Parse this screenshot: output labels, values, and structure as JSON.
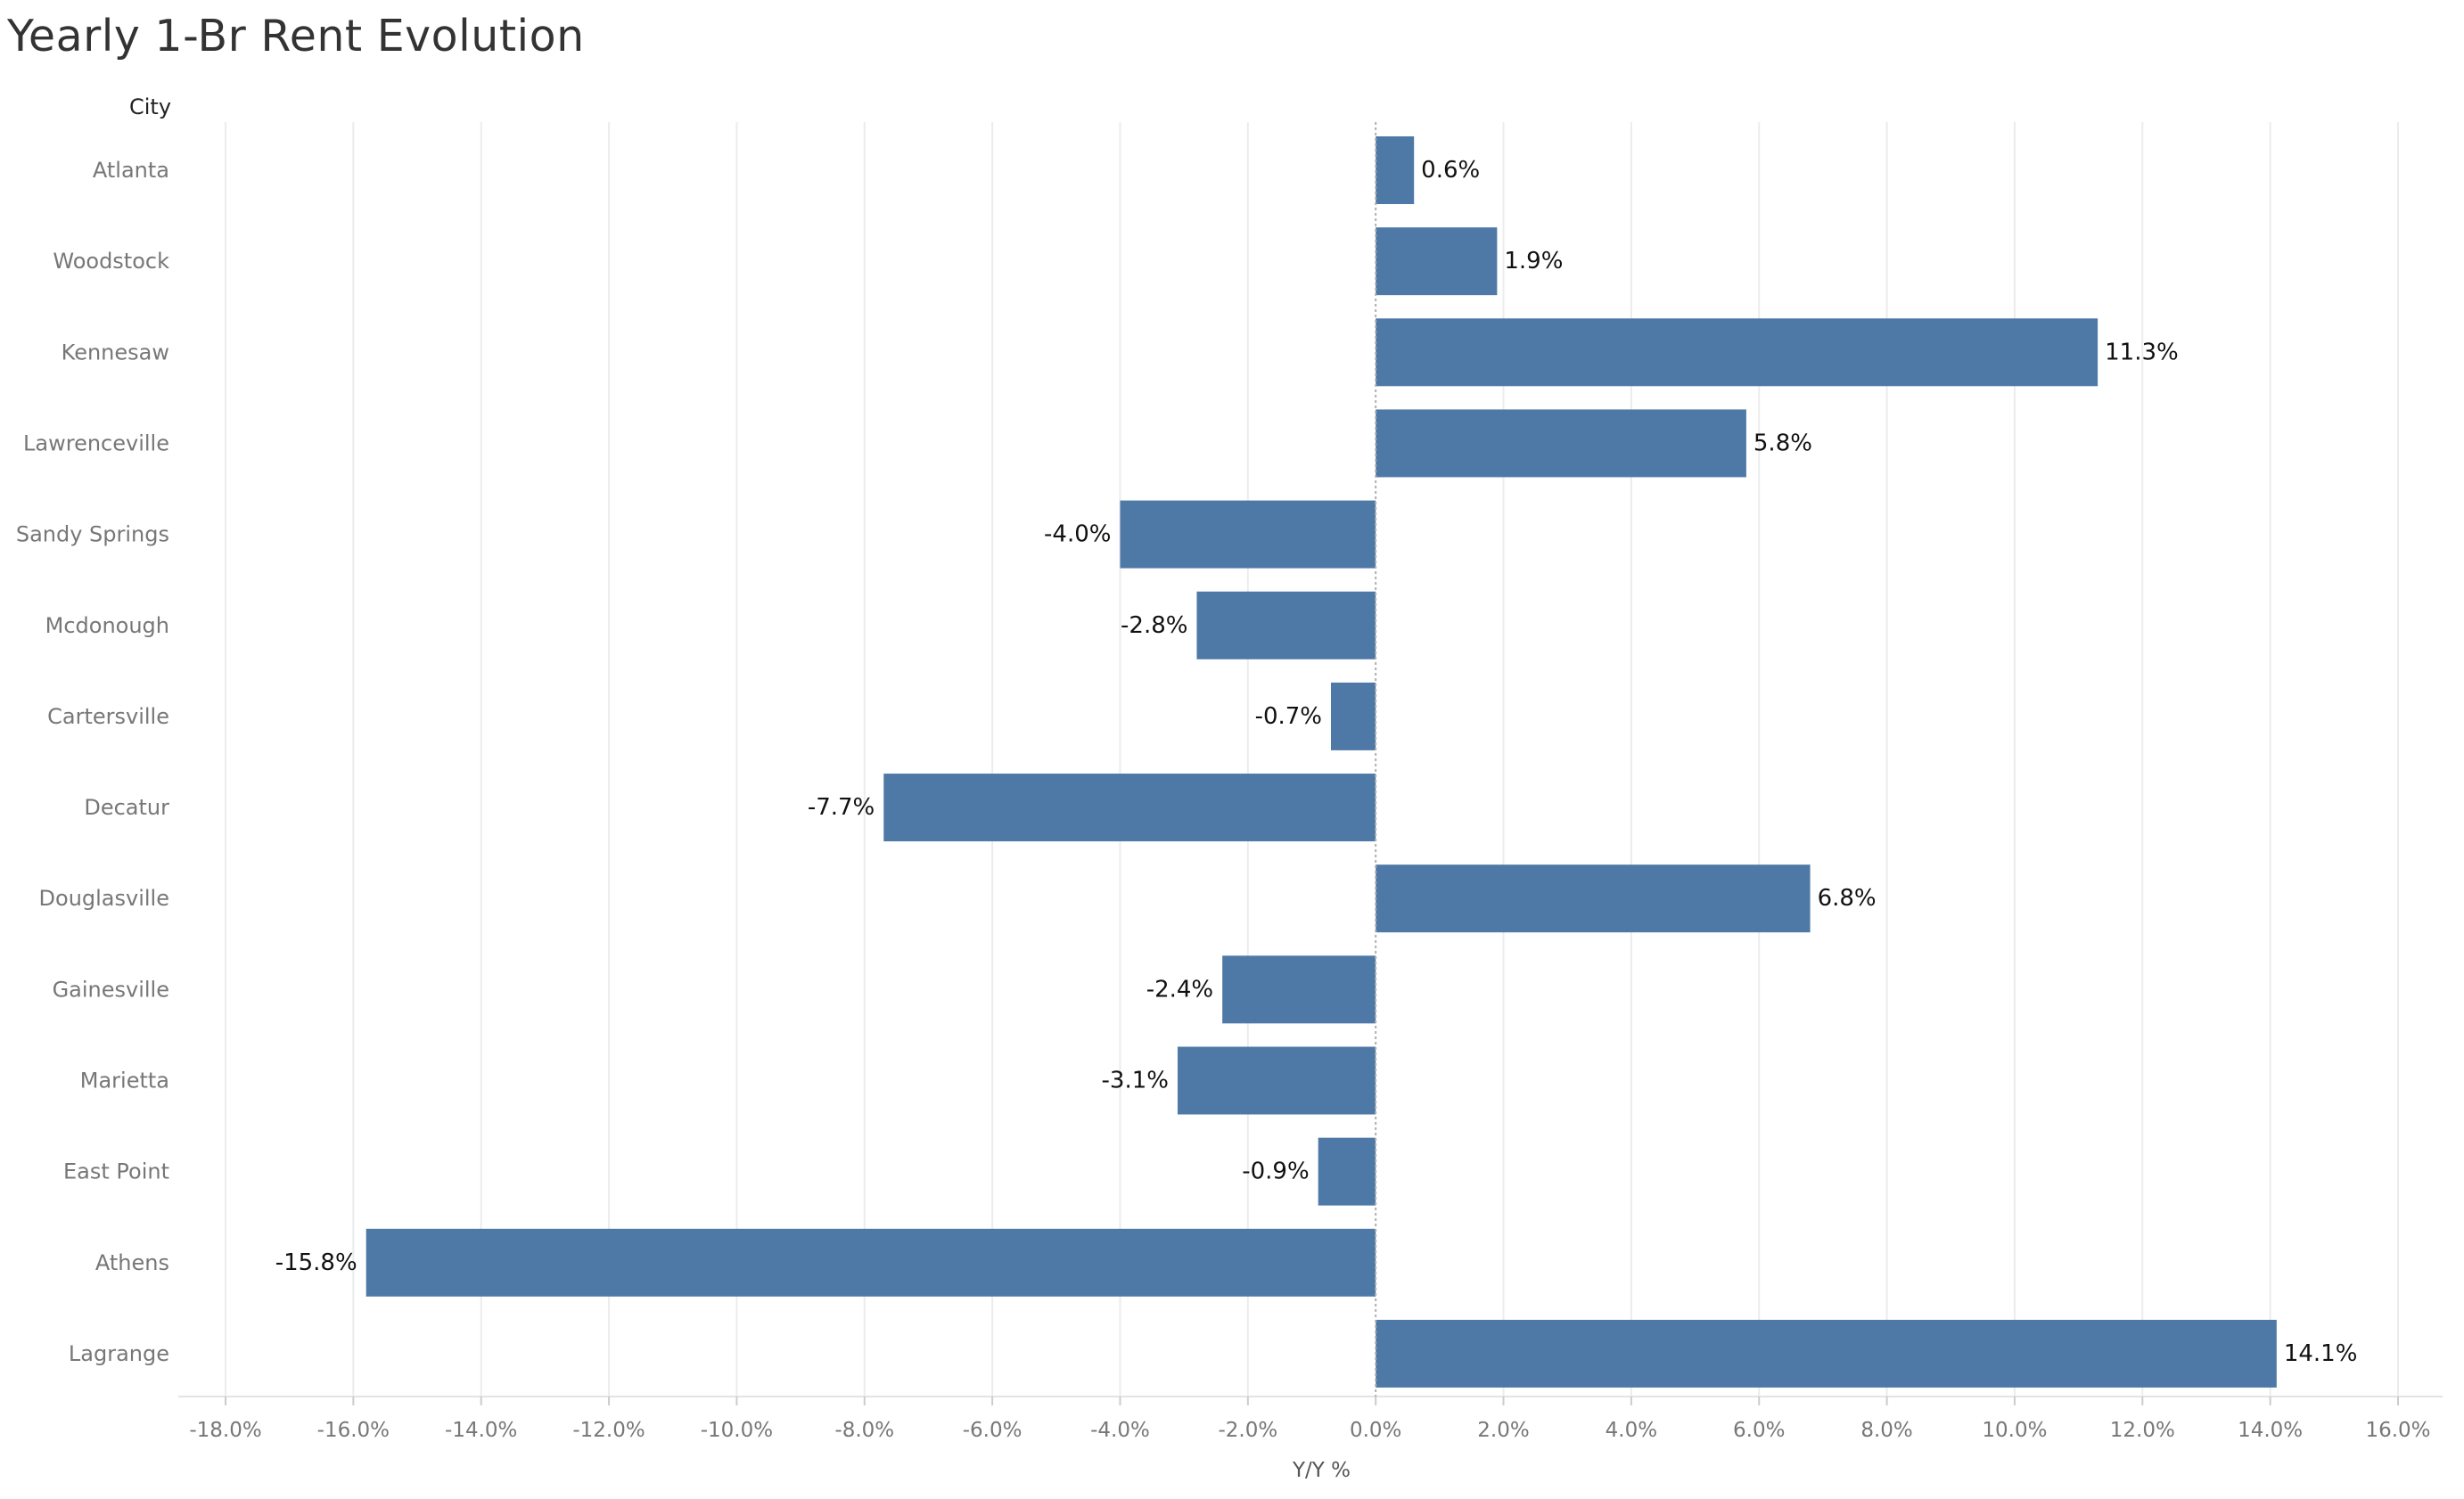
{
  "chart_data": {
    "type": "bar",
    "orientation": "horizontal",
    "title": "Yearly 1-Br Rent Evolution",
    "row_header": "City",
    "xlabel": "Y/Y %",
    "categories": [
      "Atlanta",
      "Woodstock",
      "Kennesaw",
      "Lawrenceville",
      "Sandy Springs",
      "Mcdonough",
      "Cartersville",
      "Decatur",
      "Douglasville",
      "Gainesville",
      "Marietta",
      "East Point",
      "Athens",
      "Lagrange"
    ],
    "values": [
      0.6,
      1.9,
      11.3,
      5.8,
      -4.0,
      -2.8,
      -0.7,
      -7.7,
      6.8,
      -2.4,
      -3.1,
      -0.9,
      -15.8,
      14.1
    ],
    "data_labels": [
      "0.6%",
      "1.9%",
      "11.3%",
      "5.8%",
      "-4.0%",
      "-2.8%",
      "-0.7%",
      "-7.7%",
      "6.8%",
      "-2.4%",
      "-3.1%",
      "-0.9%",
      "-15.8%",
      "14.1%"
    ],
    "xlim": [
      -18,
      16
    ],
    "x_ticks": [
      -18,
      -16,
      -14,
      -12,
      -10,
      -8,
      -6,
      -4,
      -2,
      0,
      2,
      4,
      6,
      8,
      10,
      12,
      14,
      16
    ],
    "x_tick_labels": [
      "-18.0%",
      "-16.0%",
      "-14.0%",
      "-12.0%",
      "-10.0%",
      "-8.0%",
      "-6.0%",
      "-4.0%",
      "-2.0%",
      "0.0%",
      "2.0%",
      "4.0%",
      "6.0%",
      "8.0%",
      "10.0%",
      "12.0%",
      "14.0%",
      "16.0%"
    ],
    "bar_color": "#4e79a7",
    "grid": true,
    "zero_line": "dotted"
  }
}
